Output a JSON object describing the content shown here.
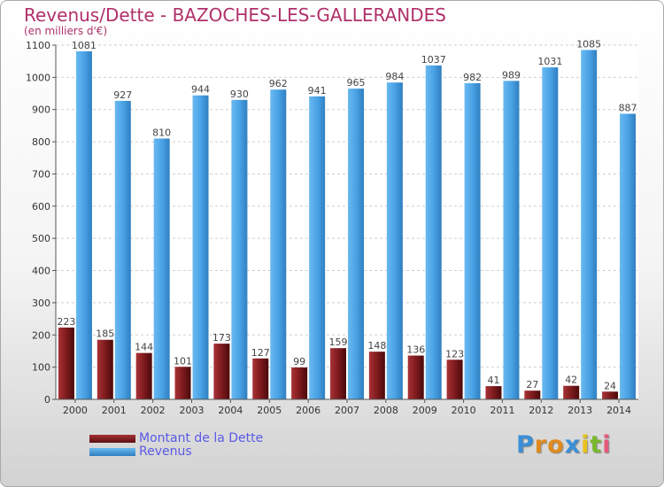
{
  "title": "Revenus/Dette - BAZOCHES-LES-GALLERANDES",
  "subtitle": "(en milliers d'€)",
  "logo": {
    "letters": [
      "P",
      "r",
      "o",
      "x",
      "i",
      "t",
      "i"
    ],
    "colors": [
      "#3c8fd6",
      "#e08a1e",
      "#e08a1e",
      "#3c8fd6",
      "#e8c21a",
      "#7ab82e",
      "#e35a7a"
    ]
  },
  "chart_data": {
    "type": "bar",
    "categories": [
      "2000",
      "2001",
      "2002",
      "2003",
      "2004",
      "2005",
      "2006",
      "2007",
      "2008",
      "2009",
      "2010",
      "2011",
      "2012",
      "2013",
      "2014"
    ],
    "series": [
      {
        "name": "Montant de la Dette",
        "color": "#8a1f22",
        "values": [
          223,
          185,
          144,
          101,
          173,
          127,
          99,
          159,
          148,
          136,
          123,
          41,
          27,
          42,
          24
        ]
      },
      {
        "name": "Revenus",
        "color": "#4aa3e6",
        "values": [
          1081,
          927,
          810,
          944,
          930,
          962,
          941,
          965,
          984,
          1037,
          982,
          989,
          1031,
          1085,
          887
        ]
      }
    ],
    "yticks": [
      0,
      100,
      200,
      300,
      400,
      500,
      600,
      700,
      800,
      900,
      1000,
      1100
    ],
    "ylim": [
      0,
      1100
    ],
    "grid": true,
    "legend": "bottom-left"
  }
}
